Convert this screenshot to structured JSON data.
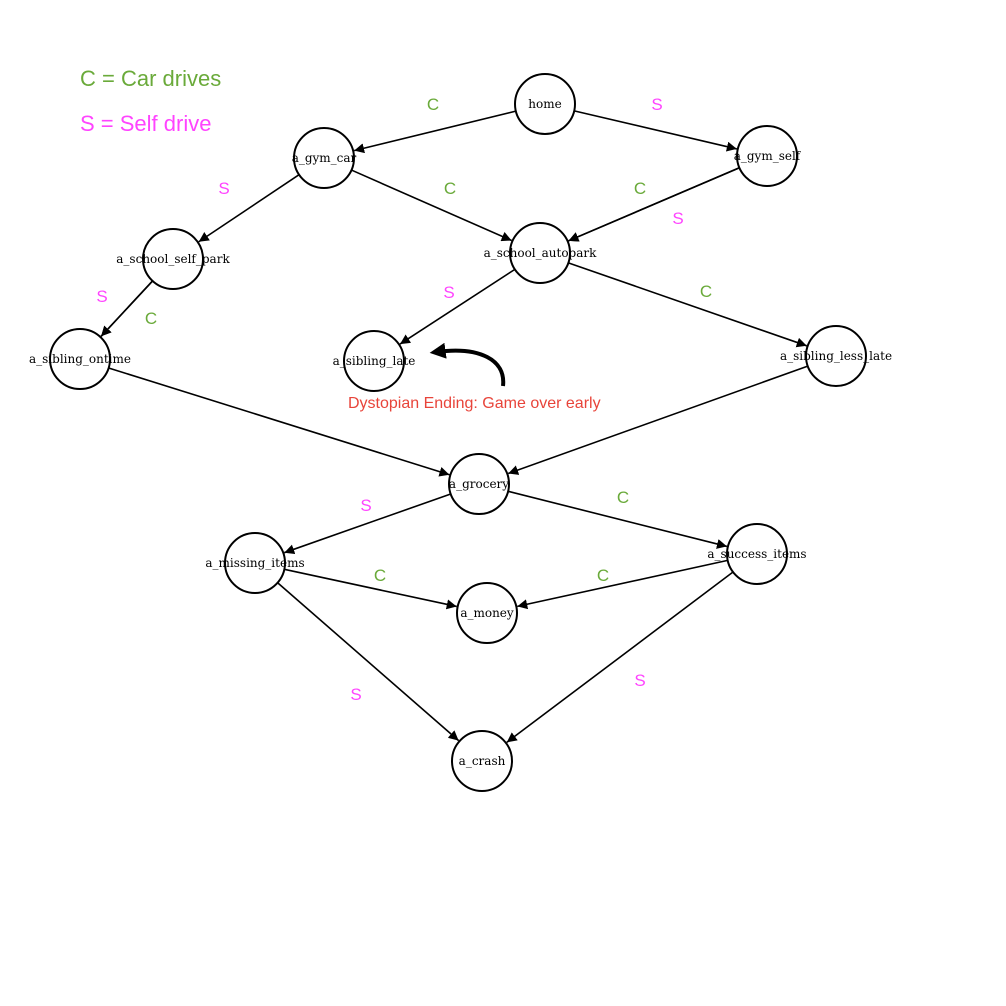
{
  "colors": {
    "car": "#6aaa3a",
    "self": "#ff44ff",
    "ending": "#e8443a"
  },
  "legend": {
    "car": "C = Car drives",
    "self": "S = Self drive"
  },
  "annotation": "Dystopian Ending: Game over early",
  "nodes": [
    {
      "id": "home",
      "label": "home"
    },
    {
      "id": "a_gym_car",
      "label": "a_gym_car"
    },
    {
      "id": "a_gym_self",
      "label": "a_gym_self"
    },
    {
      "id": "a_school_self_park",
      "label": "a_school_self_park"
    },
    {
      "id": "a_school_autopark",
      "label": "a_school_autopark"
    },
    {
      "id": "a_sibling_ontime",
      "label": "a_sibling_ontime"
    },
    {
      "id": "a_sibling_late",
      "label": "a_sibling_late"
    },
    {
      "id": "a_sibling_less_late",
      "label": "a_sibling_less_late"
    },
    {
      "id": "a_grocery",
      "label": "a_grocery"
    },
    {
      "id": "a_missing_items",
      "label": "a_missing_items"
    },
    {
      "id": "a_success_items",
      "label": "a_success_items"
    },
    {
      "id": "a_money",
      "label": "a_money"
    },
    {
      "id": "a_crash",
      "label": "a_crash"
    }
  ],
  "edges": [
    {
      "from": "home",
      "to": "a_gym_car",
      "label": "C",
      "kind": "car"
    },
    {
      "from": "home",
      "to": "a_gym_self",
      "label": "S",
      "kind": "self"
    },
    {
      "from": "a_gym_car",
      "to": "a_school_self_park",
      "label": "S",
      "kind": "self"
    },
    {
      "from": "a_gym_car",
      "to": "a_school_autopark",
      "label": "C",
      "kind": "car"
    },
    {
      "from": "a_gym_self",
      "to": "a_school_autopark",
      "label": "C",
      "kind": "car"
    },
    {
      "from": "a_gym_self",
      "to": "a_school_autopark",
      "label": "S",
      "kind": "self"
    },
    {
      "from": "a_school_self_park",
      "to": "a_sibling_ontime",
      "label": "S",
      "kind": "self"
    },
    {
      "from": "a_school_self_park",
      "to": "a_sibling_ontime",
      "label": "C",
      "kind": "car"
    },
    {
      "from": "a_school_autopark",
      "to": "a_sibling_late",
      "label": "S",
      "kind": "self"
    },
    {
      "from": "a_school_autopark",
      "to": "a_sibling_less_late",
      "label": "C",
      "kind": "car"
    },
    {
      "from": "a_sibling_ontime",
      "to": "a_grocery",
      "label": "",
      "kind": "none"
    },
    {
      "from": "a_sibling_less_late",
      "to": "a_grocery",
      "label": "",
      "kind": "none"
    },
    {
      "from": "a_grocery",
      "to": "a_missing_items",
      "label": "S",
      "kind": "self"
    },
    {
      "from": "a_grocery",
      "to": "a_success_items",
      "label": "C",
      "kind": "car"
    },
    {
      "from": "a_missing_items",
      "to": "a_money",
      "label": "C",
      "kind": "car"
    },
    {
      "from": "a_success_items",
      "to": "a_money",
      "label": "C",
      "kind": "car"
    },
    {
      "from": "a_missing_items",
      "to": "a_crash",
      "label": "S",
      "kind": "self"
    },
    {
      "from": "a_success_items",
      "to": "a_crash",
      "label": "S",
      "kind": "self"
    }
  ]
}
